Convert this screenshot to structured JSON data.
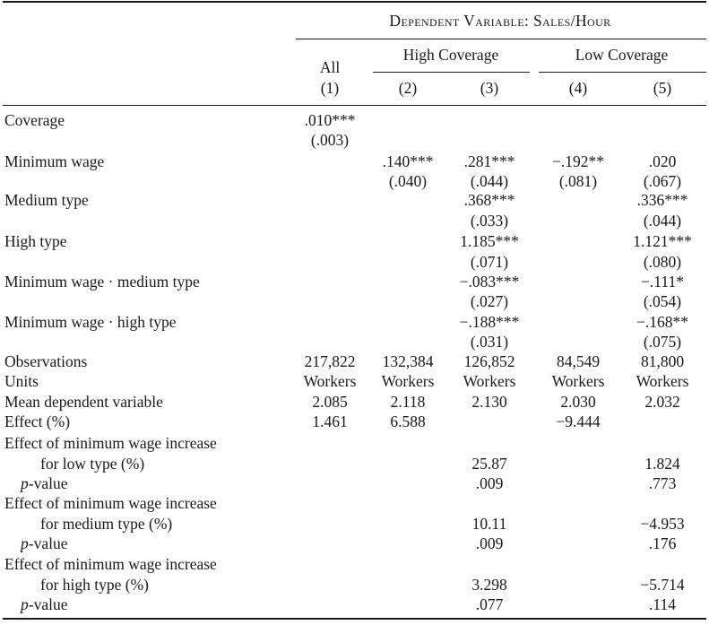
{
  "header": {
    "dependent_variable": "Dependent Variable: Sales/Hour",
    "groups": [
      "High Coverage",
      "Low Coverage"
    ],
    "columns": [
      {
        "name": "All",
        "num": "(1)"
      },
      {
        "name": "",
        "num": "(2)"
      },
      {
        "name": "",
        "num": "(3)"
      },
      {
        "name": "",
        "num": "(4)"
      },
      {
        "name": "",
        "num": "(5)"
      }
    ]
  },
  "rows": {
    "coverage": {
      "label": "Coverage",
      "c1": ".010***",
      "c1_se": "(.003)"
    },
    "min_wage": {
      "label": "Minimum wage",
      "c2": ".140***",
      "c2_se": "(.040)",
      "c3": ".281***",
      "c3_se": "(.044)",
      "c4": "−.192**",
      "c4_se": "(.081)",
      "c5": ".020",
      "c5_se": "(.067)"
    },
    "medium_type": {
      "label": "Medium type",
      "c3": ".368***",
      "c3_se": "(.033)",
      "c5": ".336***",
      "c5_se": "(.044)"
    },
    "high_type": {
      "label": "High type",
      "c3": "1.185***",
      "c3_se": "(.071)",
      "c5": "1.121***",
      "c5_se": "(.080)"
    },
    "mw_medium": {
      "label": "Minimum wage · medium type",
      "c3": "−.083***",
      "c3_se": "(.027)",
      "c5": "−.111*",
      "c5_se": "(.054)"
    },
    "mw_high": {
      "label": "Minimum wage · high type",
      "c3": "−.188***",
      "c3_se": "(.031)",
      "c5": "−.168**",
      "c5_se": "(.075)"
    },
    "observations": {
      "label": "Observations",
      "c1": "217,822",
      "c2": "132,384",
      "c3": "126,852",
      "c4": "84,549",
      "c5": "81,800"
    },
    "units": {
      "label": "Units",
      "c1": "Workers",
      "c2": "Workers",
      "c3": "Workers",
      "c4": "Workers",
      "c5": "Workers"
    },
    "mean_dep": {
      "label": "Mean dependent variable",
      "c1": "2.085",
      "c2": "2.118",
      "c3": "2.130",
      "c4": "2.030",
      "c5": "2.032"
    },
    "effect": {
      "label": "Effect (%)",
      "c1": "1.461",
      "c2": "6.588",
      "c4": "−9.444"
    },
    "eff_low": {
      "label1": "Effect of minimum wage increase",
      "label2": "for low type (%)",
      "c3": "25.87",
      "c5": "1.824",
      "p_label": "p",
      "p_suffix": "-value",
      "p_c3": ".009",
      "p_c5": ".773"
    },
    "eff_medium": {
      "label1": "Effect of minimum wage increase",
      "label2": "for medium type (%)",
      "c3": "10.11",
      "c5": "−4.953",
      "p_label": "p",
      "p_suffix": "-value",
      "p_c3": ".009",
      "p_c5": ".176"
    },
    "eff_high": {
      "label1": "Effect of minimum wage increase",
      "label2": "for high type (%)",
      "c3": "3.298",
      "c5": "−5.714",
      "p_label": "p",
      "p_suffix": "-value",
      "p_c3": ".077",
      "p_c5": ".114"
    }
  }
}
